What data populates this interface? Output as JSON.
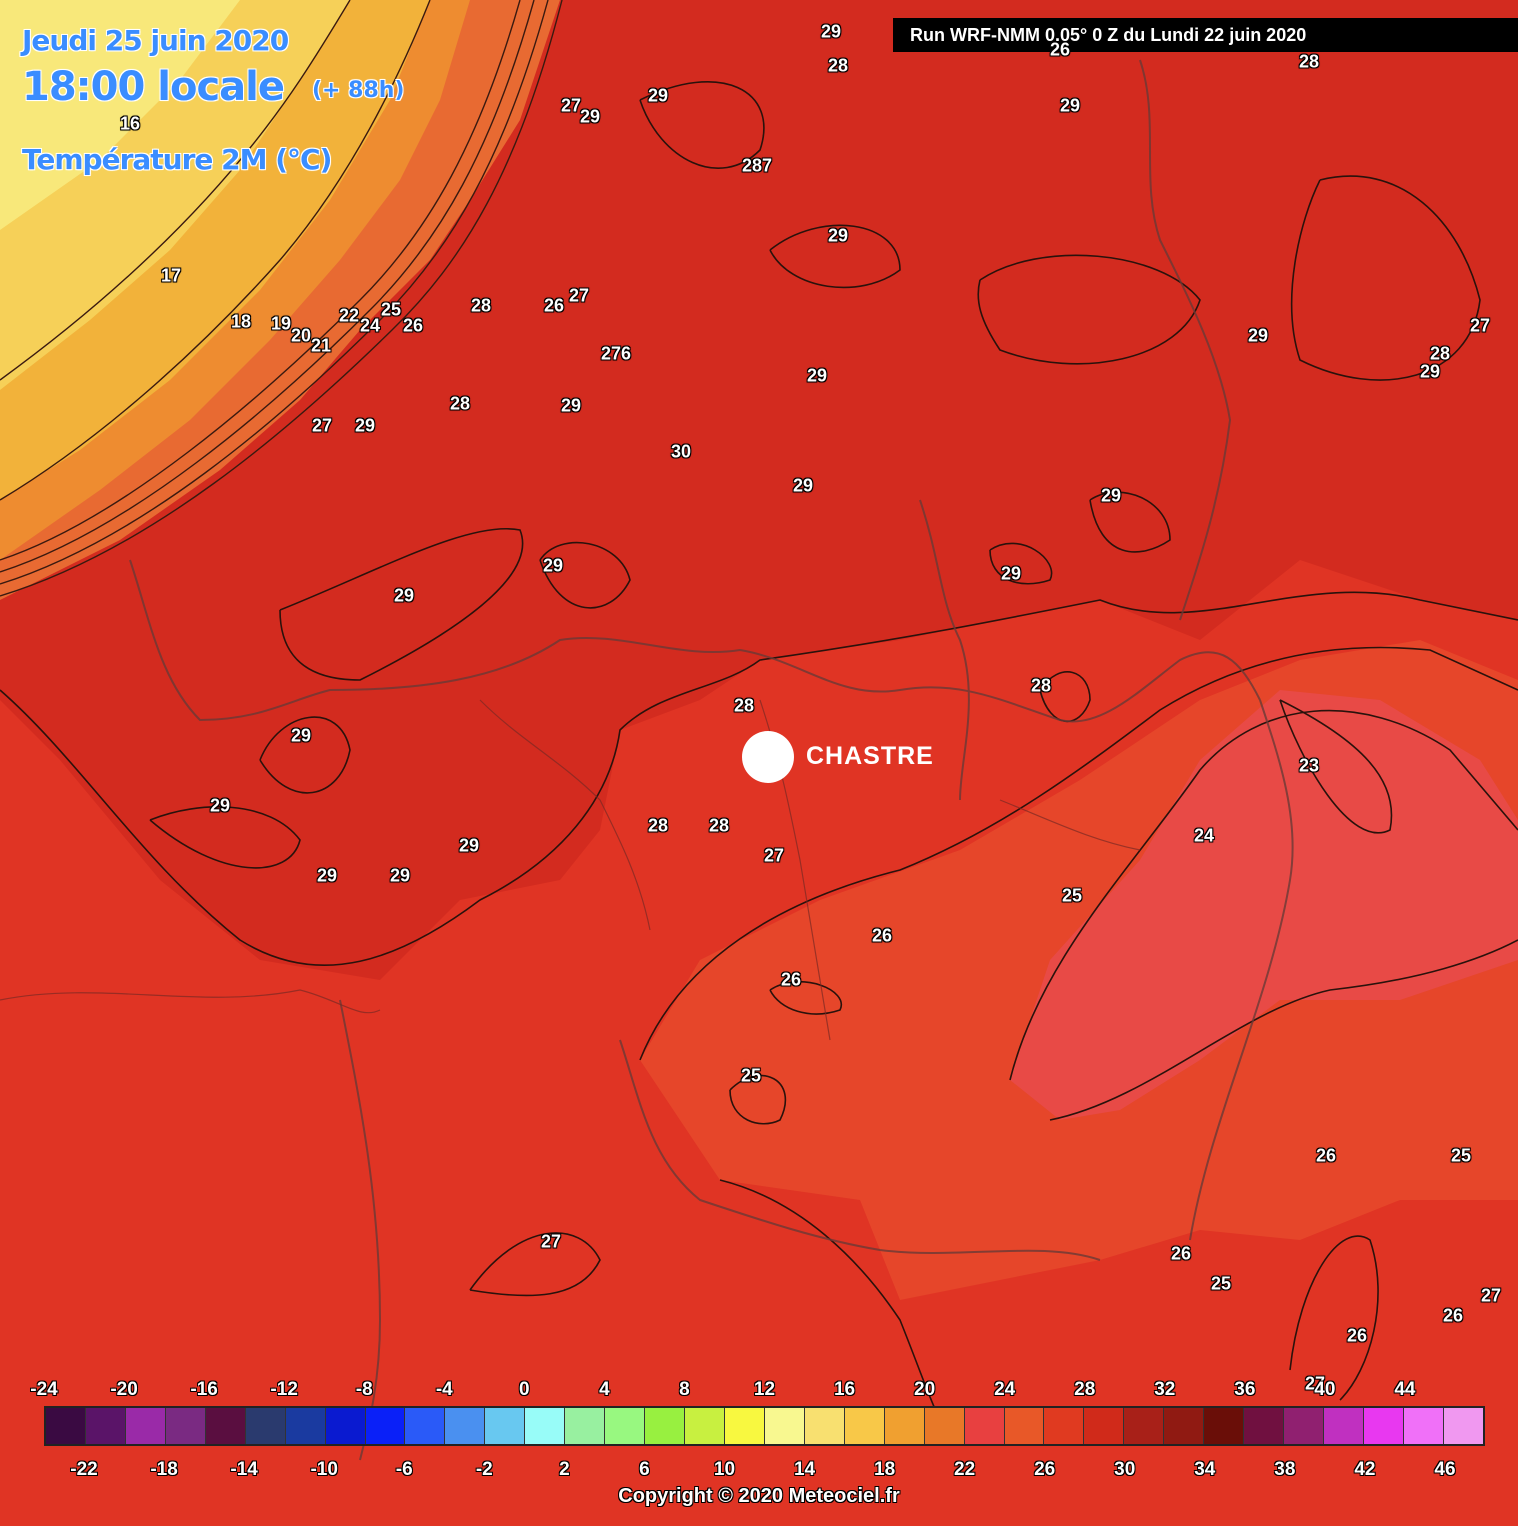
{
  "header": {
    "date": "Jeudi 25 juin 2020",
    "time": "18:00 locale",
    "lead": "(+ 88h)",
    "parameter": "Température 2M (°C)"
  },
  "run_banner": "Run WRF-NMM 0.05° 0 Z du Lundi 22 juin 2020",
  "city": {
    "name": "CHASTRE"
  },
  "contour_labels": [
    "29",
    "28",
    "29",
    "27",
    "29",
    "29",
    "287",
    "29",
    "29",
    "28",
    "29",
    "27",
    "28",
    "29",
    "16",
    "17",
    "18",
    "19",
    "20",
    "21",
    "22",
    "24",
    "25",
    "26",
    "28",
    "26",
    "27",
    "276",
    "28",
    "29",
    "27",
    "29",
    "30",
    "29",
    "29",
    "29",
    "29",
    "29",
    "28",
    "28",
    "23",
    "24",
    "25",
    "26",
    "29",
    "29",
    "29",
    "29",
    "29",
    "28",
    "28",
    "27",
    "26",
    "26",
    "25",
    "27",
    "26",
    "26",
    "25",
    "25",
    "26",
    "27",
    "26",
    "27"
  ],
  "legend": {
    "top_labels": [
      "-24",
      "-20",
      "-16",
      "-12",
      "-8",
      "-4",
      "0",
      "4",
      "8",
      "12",
      "16",
      "20",
      "24",
      "28",
      "32",
      "36",
      "40",
      "44"
    ],
    "bottom_labels": [
      "-22",
      "-18",
      "-14",
      "-10",
      "-6",
      "-2",
      "2",
      "6",
      "10",
      "14",
      "18",
      "22",
      "26",
      "30",
      "34",
      "38",
      "42",
      "46"
    ],
    "colors": [
      "#3a0a42",
      "#5a1468",
      "#9a2aa8",
      "#7a2a82",
      "#5a0e40",
      "#2a3a6e",
      "#1a3aa0",
      "#0a1ad0",
      "#0a20f8",
      "#2a5af8",
      "#4a90f0",
      "#68c8f0",
      "#98fcf8",
      "#98f0a0",
      "#98f880",
      "#98f040",
      "#c8f040",
      "#f8f840",
      "#f8f890",
      "#f8e070",
      "#f8c848",
      "#f0a030",
      "#e87828",
      "#e84040",
      "#e85828",
      "#e03a20",
      "#d02a1a",
      "#a82018",
      "#901a12",
      "#6a0e08",
      "#701040",
      "#902070",
      "#c030c0",
      "#e838f0",
      "#f070f8",
      "#f098f0"
    ]
  },
  "copyright": "Copyright © 2020 Meteociel.fr"
}
